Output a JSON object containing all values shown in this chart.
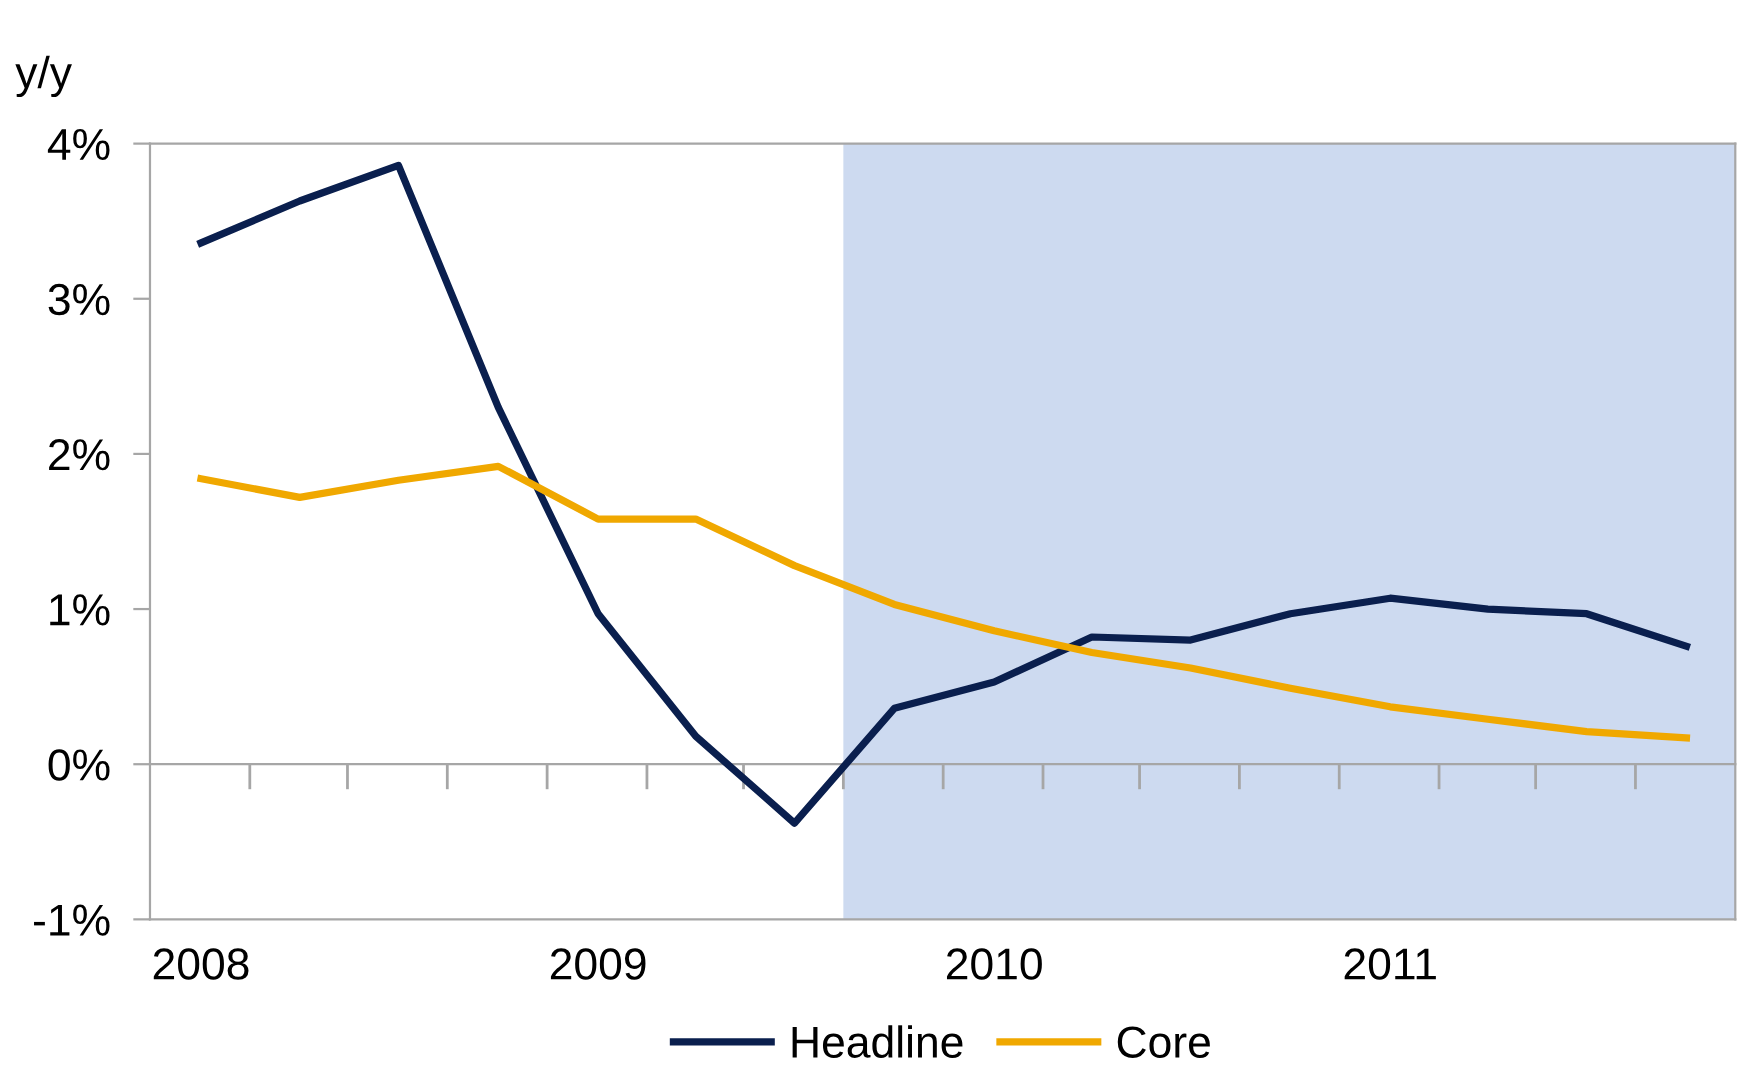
{
  "chart_data": {
    "type": "line",
    "ylabel": "y/y",
    "x": [
      "2008-01",
      "2008-04",
      "2008-07",
      "2008-10",
      "2009-01",
      "2009-04",
      "2009-07",
      "2009-10",
      "2010-01",
      "2010-04",
      "2010-07",
      "2010-10",
      "2011-01",
      "2011-04",
      "2011-07",
      "2011-10"
    ],
    "series": [
      {
        "name": "Headline",
        "color": "#0a1f4e",
        "values": [
          3.36,
          3.63,
          3.86,
          2.3,
          0.97,
          0.18,
          -0.38,
          0.36,
          0.53,
          0.82,
          0.8,
          0.97,
          1.07,
          1.0,
          0.97,
          0.76
        ]
      },
      {
        "name": "Core",
        "color": "#f0a800",
        "values": [
          1.84,
          1.72,
          1.83,
          1.92,
          1.58,
          1.58,
          1.28,
          1.03,
          0.86,
          0.72,
          0.62,
          0.49,
          0.37,
          0.29,
          0.21,
          0.17
        ]
      }
    ],
    "xlim": [
      "2007-11-15",
      "2011-11-15"
    ],
    "xticks": [
      {
        "value": "2008-01",
        "label": "2008"
      },
      {
        "value": "2008-02-15",
        "label": null
      },
      {
        "value": "2008-05-15",
        "label": null
      },
      {
        "value": "2008-08-15",
        "label": null
      },
      {
        "value": "2008-11-15",
        "label": null
      },
      {
        "value": "2009-01",
        "label": "2009"
      },
      {
        "value": "2009-02-15",
        "label": null
      },
      {
        "value": "2009-05-15",
        "label": null
      },
      {
        "value": "2009-08-15",
        "label": null
      },
      {
        "value": "2009-11-15",
        "label": null
      },
      {
        "value": "2010-01",
        "label": "2010"
      },
      {
        "value": "2010-02-15",
        "label": null
      },
      {
        "value": "2010-05-15",
        "label": null
      },
      {
        "value": "2010-08-15",
        "label": null
      },
      {
        "value": "2010-11-15",
        "label": null
      },
      {
        "value": "2011-01",
        "label": "2011"
      },
      {
        "value": "2011-02-15",
        "label": null
      },
      {
        "value": "2011-05-15",
        "label": null
      },
      {
        "value": "2011-08-15",
        "label": null
      }
    ],
    "ylim": [
      -1,
      4
    ],
    "yticks": [
      {
        "value": -1,
        "label": "-1%"
      },
      {
        "value": 0,
        "label": "0%"
      },
      {
        "value": 1,
        "label": "1%"
      },
      {
        "value": 2,
        "label": "2%"
      },
      {
        "value": 3,
        "label": "3%"
      },
      {
        "value": 4,
        "label": "4%"
      }
    ],
    "bands": [
      {
        "axis": "x",
        "from": "2009-08-15",
        "to": "2011-11-15",
        "color": "#cddaf0"
      }
    ],
    "legend": "bottom",
    "marker": "none",
    "line_style": "solid"
  }
}
